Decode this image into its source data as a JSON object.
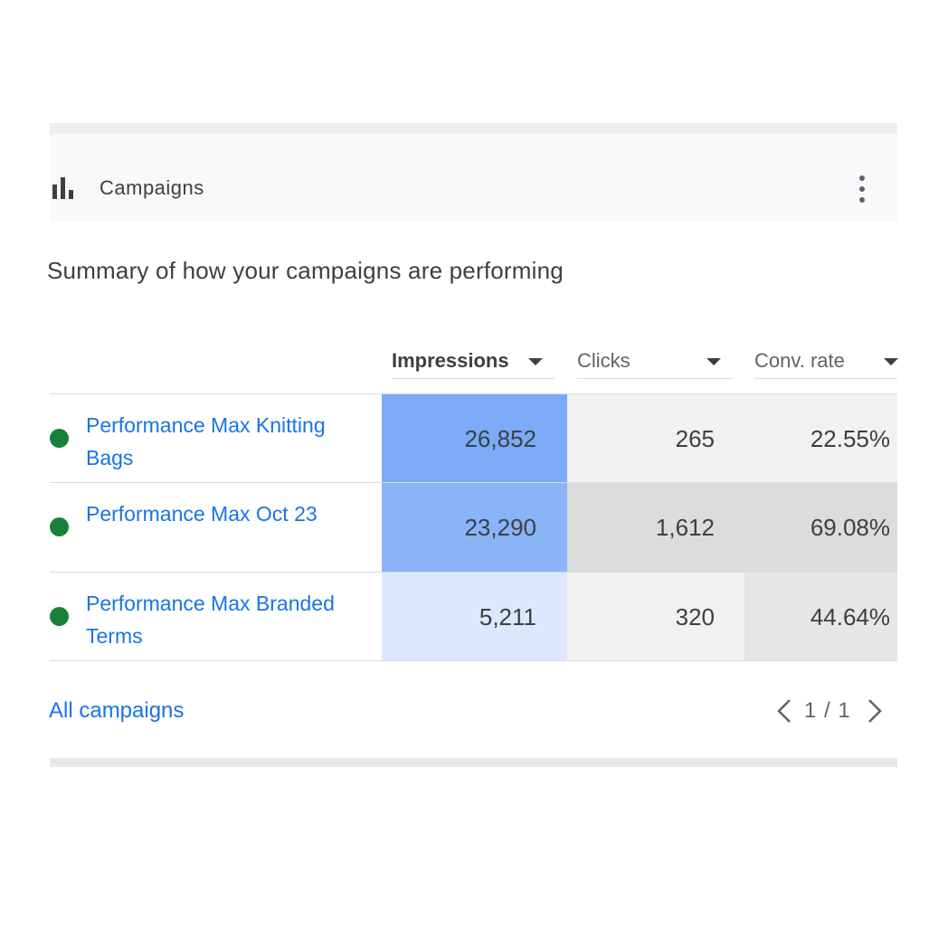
{
  "card": {
    "title": "Campaigns",
    "header_icon": "bar-chart-icon",
    "menu_icon": "more-vert-icon"
  },
  "subtitle": "Summary of how your campaigns are performing",
  "columns": [
    {
      "label": "Impressions",
      "sorted": true
    },
    {
      "label": "Clicks",
      "sorted": false
    },
    {
      "label": "Conv. rate",
      "sorted": false
    }
  ],
  "rows": [
    {
      "status_color": "#188038",
      "name": "Performance Max Knitting Bags",
      "impressions": "26,852",
      "clicks": "265",
      "conv_rate": "22.55%",
      "imp_bg": "#7baaf7",
      "clk_bg": "#f1f1f1",
      "cvr_bg": "#f1f1f1"
    },
    {
      "status_color": "#188038",
      "name": "Performance Max Oct 23",
      "impressions": "23,290",
      "clicks": "1,612",
      "conv_rate": "69.08%",
      "imp_bg": "#8ab4f8",
      "clk_bg": "#dcdcdc",
      "cvr_bg": "#dcdcdc"
    },
    {
      "status_color": "#188038",
      "name": "Performance Max Branded Terms",
      "impressions": "5,211",
      "clicks": "320",
      "conv_rate": "44.64%",
      "imp_bg": "#dbe8fd",
      "clk_bg": "#f1f1f1",
      "cvr_bg": "#e6e6e6"
    }
  ],
  "footer": {
    "all_link": "All campaigns",
    "pagination": "1 / 1",
    "prev_icon": "chevron-left-icon",
    "next_icon": "chevron-right-icon"
  },
  "colors": {
    "link": "#1a73e8",
    "status_active": "#188038"
  }
}
